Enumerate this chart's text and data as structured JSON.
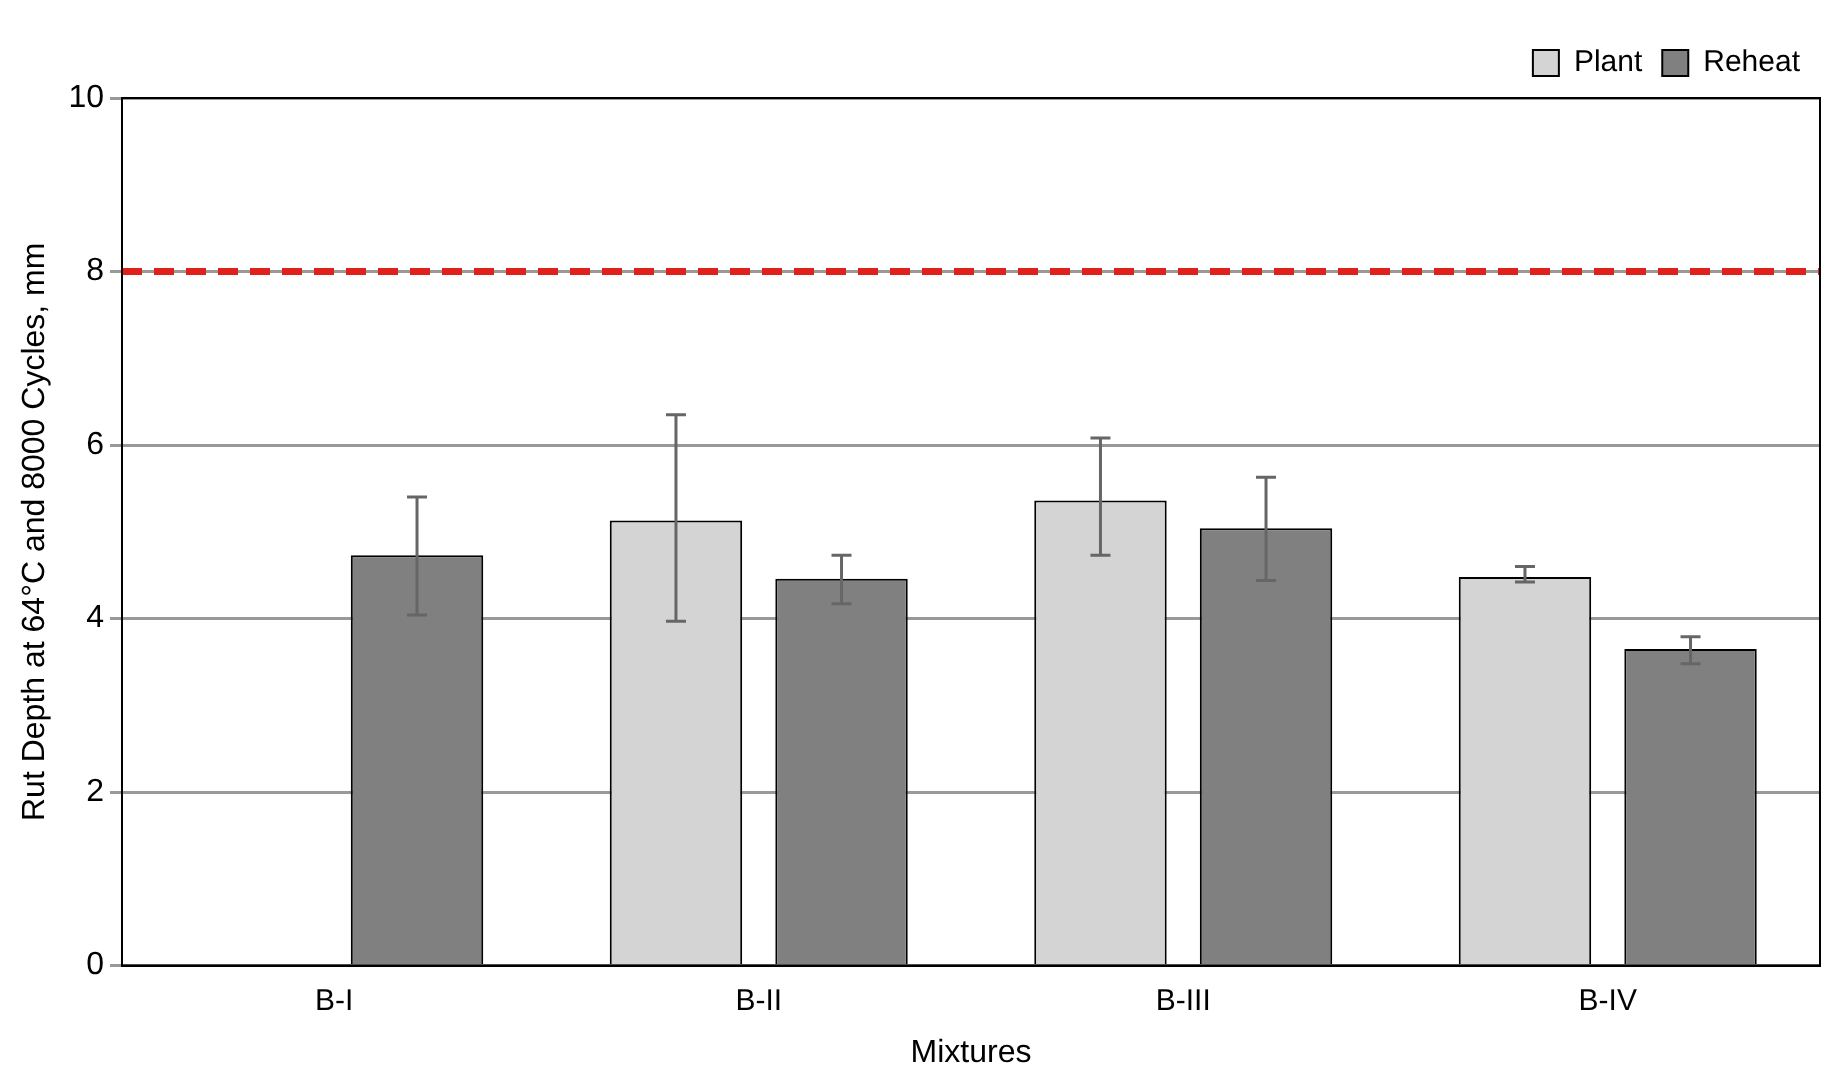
{
  "chart_data": {
    "type": "bar",
    "xlabel": "Mixtures",
    "ylabel": "Rut Depth at 64°C and 8000 Cycles, mm",
    "categories": [
      "B-I",
      "B-II",
      "B-III",
      "B-IV"
    ],
    "series": [
      {
        "name": "Plant",
        "color": "#d4d4d4",
        "values": [
          null,
          5.13,
          5.36,
          4.48
        ],
        "errors": [
          null,
          [
            3.97,
            6.35
          ],
          [
            4.73,
            6.08
          ],
          [
            4.42,
            4.6
          ]
        ]
      },
      {
        "name": "Reheat",
        "color": "#808080",
        "values": [
          4.73,
          4.46,
          5.04,
          3.65
        ],
        "errors": [
          [
            4.04,
            5.4
          ],
          [
            4.17,
            4.73
          ],
          [
            4.44,
            5.63
          ],
          [
            3.48,
            3.79
          ]
        ]
      }
    ],
    "ylim": [
      0,
      10
    ],
    "yticks": [
      0,
      2,
      4,
      6,
      8,
      10
    ],
    "grid": "y",
    "legend": "top right",
    "ref_lines": [
      {
        "axis": "y",
        "value": 8,
        "color": "#e0201a",
        "line_style": "dashed"
      }
    ]
  }
}
